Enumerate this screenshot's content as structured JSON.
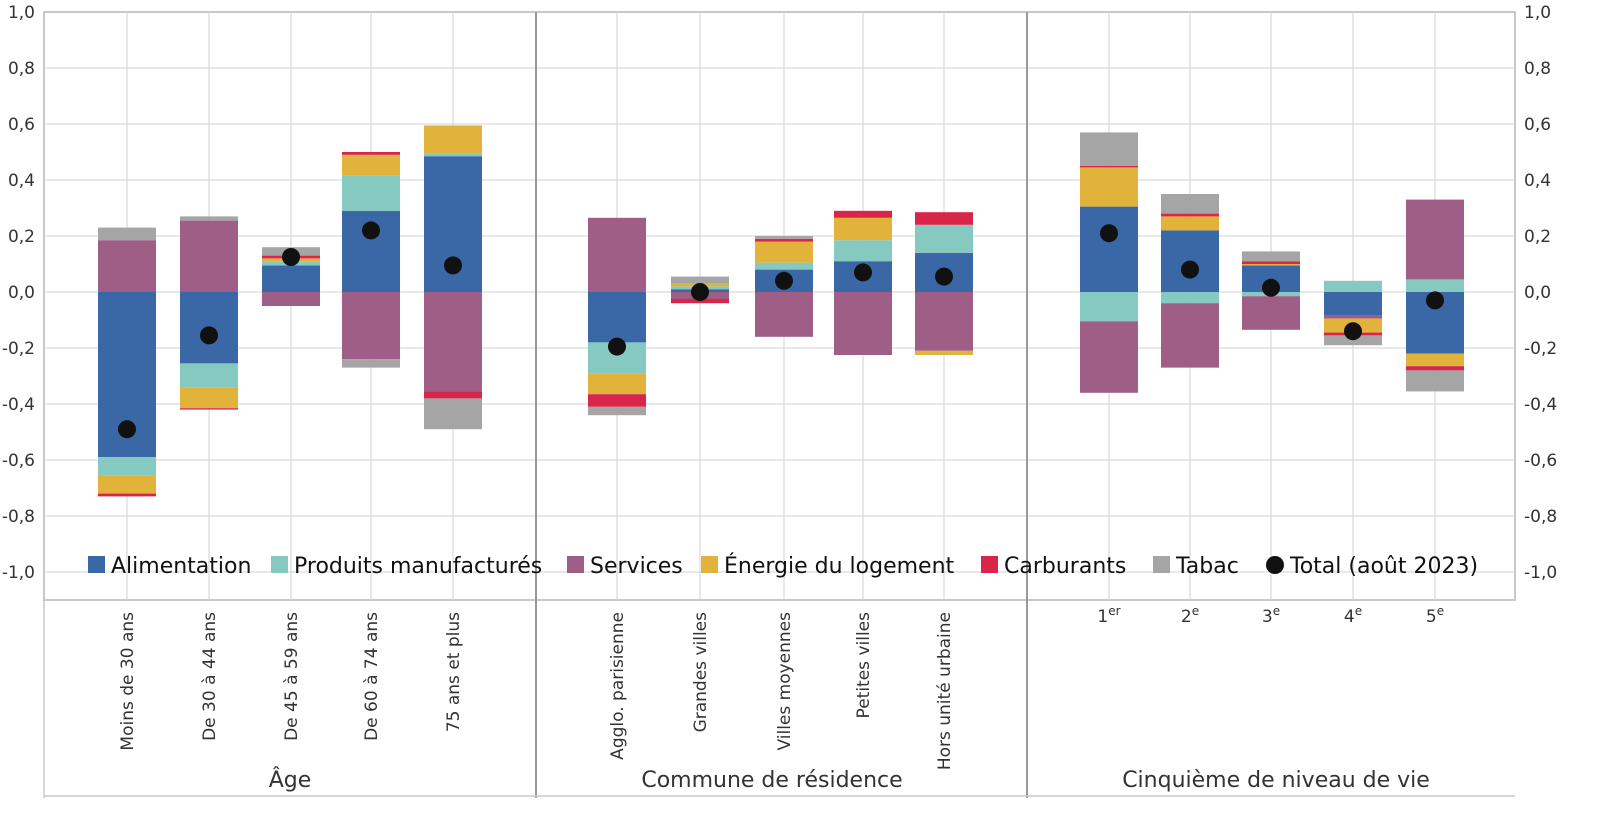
{
  "chart_data": {
    "type": "bar",
    "stacked": true,
    "grid": true,
    "legend_position": "bottom-inside",
    "ylim": [
      -1.0,
      1.0
    ],
    "yticks": [
      "-1,0",
      "-0,8",
      "-0,6",
      "-0,4",
      "-0,2",
      "0,0",
      "0,2",
      "0,4",
      "0,6",
      "0,8",
      "1,0"
    ],
    "yticks_values": [
      -1.0,
      -0.8,
      -0.6,
      -0.4,
      -0.2,
      0.0,
      0.2,
      0.4,
      0.6,
      0.8,
      1.0
    ],
    "groups": [
      {
        "label": "Âge",
        "categories": [
          {
            "label": "Moins de 30 ans"
          },
          {
            "label": "De 30 à 44 ans"
          },
          {
            "label": "De 45 à 59 ans"
          },
          {
            "label": "De 60 à 74 ans"
          },
          {
            "label": "75 ans et plus"
          }
        ]
      },
      {
        "label": "Commune de résidence",
        "categories": [
          {
            "label": "Agglo. parisienne"
          },
          {
            "label": "Grandes villes"
          },
          {
            "label": "Villes moyennes"
          },
          {
            "label": "Petites villes"
          },
          {
            "label": "Hors unité urbaine"
          }
        ]
      },
      {
        "label": "Cinquième de niveau de vie",
        "categories": [
          {
            "label": "1",
            "sup": "er"
          },
          {
            "label": "2",
            "sup": "e"
          },
          {
            "label": "3",
            "sup": "e"
          },
          {
            "label": "4",
            "sup": "e"
          },
          {
            "label": "5",
            "sup": "e"
          }
        ]
      }
    ],
    "series": [
      {
        "name": "Alimentation",
        "color": "#3a67a5",
        "values": [
          -0.59,
          -0.255,
          0.095,
          0.29,
          0.485,
          -0.18,
          0.01,
          0.08,
          0.11,
          0.14,
          0.305,
          0.22,
          0.095,
          -0.085,
          -0.22
        ]
      },
      {
        "name": "Produits manufacturés",
        "color": "#86c9c0",
        "values": [
          -0.065,
          -0.085,
          0.015,
          0.125,
          0.01,
          -0.11,
          0.01,
          0.025,
          0.075,
          0.1,
          -0.105,
          -0.04,
          -0.015,
          0.04,
          0.045
        ]
      },
      {
        "name": "Services",
        "color": "#9e5e86",
        "values": [
          0.185,
          0.255,
          -0.05,
          -0.24,
          -0.355,
          0.265,
          -0.025,
          -0.16,
          -0.225,
          -0.21,
          -0.255,
          -0.23,
          -0.12,
          -0.01,
          0.285
        ]
      },
      {
        "name": "Énergie du logement",
        "color": "#e1b33b",
        "values": [
          -0.065,
          -0.075,
          0.01,
          0.075,
          0.1,
          -0.075,
          0.01,
          0.075,
          0.08,
          -0.015,
          0.14,
          0.05,
          0.005,
          -0.05,
          -0.045
        ]
      },
      {
        "name": "Carburants",
        "color": "#d9254a",
        "values": [
          -0.01,
          -0.005,
          0.01,
          0.01,
          -0.025,
          -0.045,
          -0.015,
          0.01,
          0.025,
          0.045,
          0.005,
          0.01,
          0.01,
          -0.01,
          -0.015
        ]
      },
      {
        "name": "Tabac",
        "color": "#a5a5a5",
        "values": [
          0.045,
          0.015,
          0.03,
          -0.03,
          -0.11,
          -0.03,
          0.025,
          0.01,
          0.0,
          0.0,
          0.12,
          0.07,
          0.035,
          -0.035,
          -0.075
        ]
      }
    ],
    "total": {
      "name": "Total (août 2023)",
      "color": "#111111",
      "values": [
        -0.49,
        -0.155,
        0.125,
        0.22,
        0.095,
        -0.195,
        0.0,
        0.04,
        0.07,
        0.055,
        0.21,
        0.08,
        0.015,
        -0.14,
        -0.03
      ]
    }
  }
}
